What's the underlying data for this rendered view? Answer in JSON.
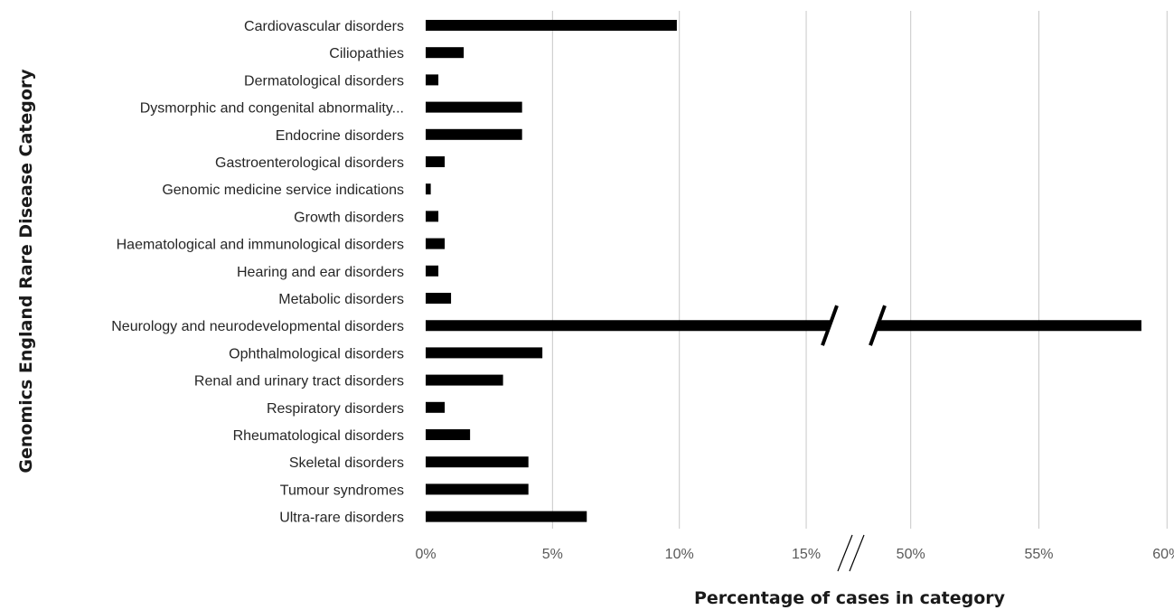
{
  "chart_data": {
    "type": "bar",
    "orientation": "horizontal",
    "xlabel": "Percentage of cases in category",
    "ylabel": "Genomics England Rare Disease Category",
    "axis_break": {
      "after": "15%",
      "before": "50%"
    },
    "ticks_left": [
      "0%",
      "5%",
      "10%",
      "15%"
    ],
    "ticks_right": [
      "50%",
      "55%",
      "60%"
    ],
    "tick_values_left": [
      0,
      5,
      10,
      15
    ],
    "tick_values_right": [
      50,
      55,
      60
    ],
    "grid": true,
    "legend": "none",
    "bar_color": "#000000",
    "categories": [
      "Cardiovascular disorders",
      "Ciliopathies",
      "Dermatological disorders",
      "Dysmorphic and congenital abnormality...",
      "Endocrine disorders",
      "Gastroenterological disorders",
      "Genomic medicine service indications",
      "Growth disorders",
      "Haematological and immunological disorders",
      "Hearing and ear disorders",
      "Metabolic disorders",
      "Neurology and neurodevelopmental disorders",
      "Ophthalmological disorders",
      "Renal and urinary tract disorders",
      "Respiratory disorders",
      "Rheumatological disorders",
      "Skeletal disorders",
      "Tumour syndromes",
      "Ultra-rare disorders"
    ],
    "values": [
      9.9,
      1.5,
      0.5,
      3.8,
      3.8,
      0.75,
      0.2,
      0.5,
      0.75,
      0.5,
      1.0,
      59.0,
      4.6,
      3.05,
      0.75,
      1.75,
      4.05,
      4.05,
      6.35
    ]
  }
}
